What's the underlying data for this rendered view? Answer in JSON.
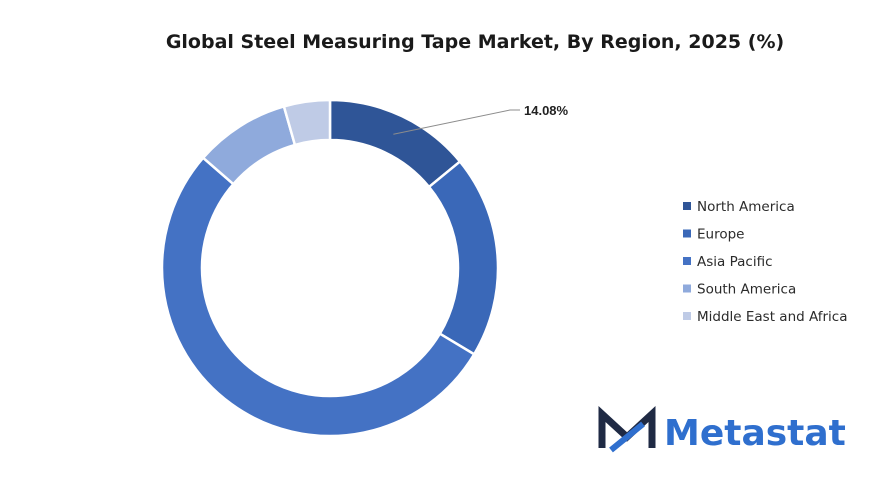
{
  "chart_data": {
    "type": "pie",
    "variant": "donut",
    "title": "Global Steel Measuring Tape Market, By Region, 2025 (%)",
    "categories": [
      "North America",
      "Europe",
      "Asia Pacific",
      "South America",
      "Middle East and Africa"
    ],
    "values": [
      14.08,
      19.5,
      52.8,
      9.2,
      4.42
    ],
    "colors": [
      "#2f5597",
      "#3a68b8",
      "#4472c4",
      "#8faadc",
      "#bfcbe6"
    ],
    "data_labels": [
      "14.08%",
      "",
      "",
      "",
      ""
    ],
    "legend_position": "right",
    "start_angle_deg": 0,
    "direction": "clockwise"
  },
  "brand": {
    "logo_text": "Metastat",
    "logo_icon": "metastat-m-icon",
    "colors": {
      "dark": "#1f2a44",
      "accent": "#2f6fce"
    }
  }
}
